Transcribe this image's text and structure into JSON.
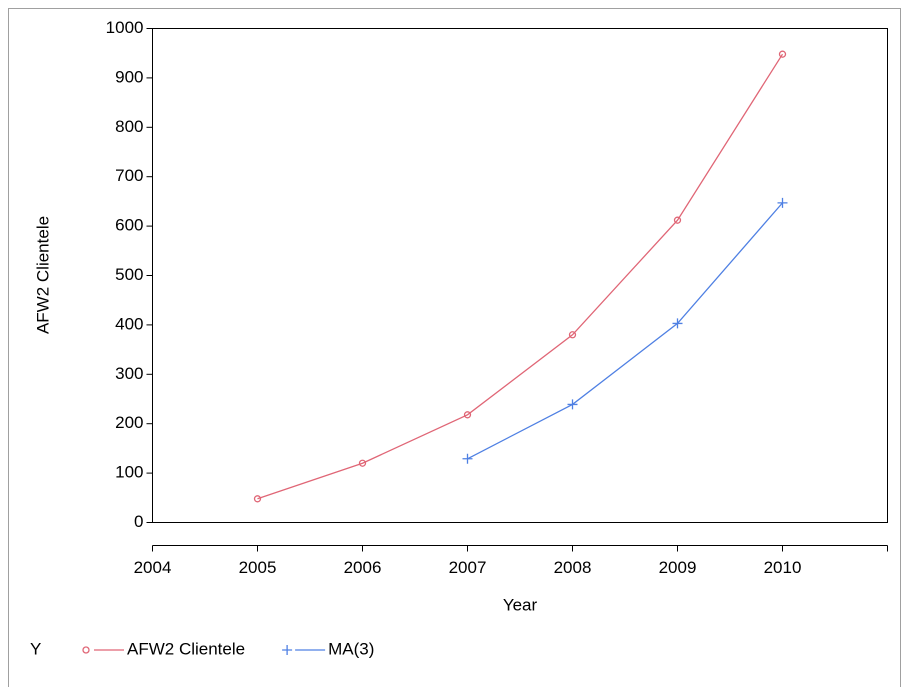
{
  "chart_data": {
    "type": "line",
    "x_label": "Year",
    "y_label": "AFW2 Clientele",
    "legend_title": "Y",
    "x": [
      2005,
      2006,
      2007,
      2008,
      2009,
      2010
    ],
    "series": [
      {
        "name": "AFW2 Clientele",
        "color": "#e06676",
        "marker": "circle",
        "values": [
          48,
          120,
          218,
          380,
          612,
          948
        ]
      },
      {
        "name": "MA(3)",
        "color": "#4f80e3",
        "marker": "plus",
        "values": [
          null,
          null,
          129,
          239,
          403,
          647
        ]
      }
    ],
    "xlim": [
      2004,
      2011
    ],
    "xticks": [
      2004,
      2005,
      2006,
      2007,
      2008,
      2009,
      2010
    ],
    "ylim": [
      0,
      1000
    ],
    "yticks": [
      0,
      100,
      200,
      300,
      400,
      500,
      600,
      700,
      800,
      900,
      1000
    ],
    "legend": "bottom-left",
    "grid": false
  }
}
